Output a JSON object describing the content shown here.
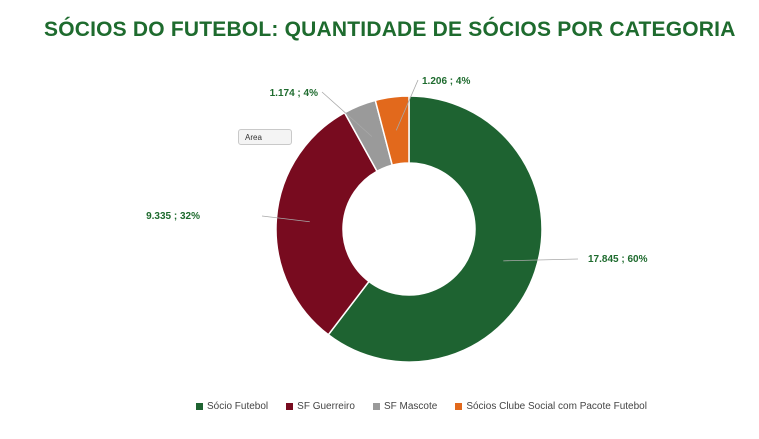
{
  "title": "SÓCIOS DO FUTEBOL: QUANTIDADE DE SÓCIOS POR CATEGORIA",
  "tooltip": "Area",
  "chart_data": {
    "type": "pie",
    "donut": true,
    "series": [
      {
        "name": "Sócio Futebol",
        "value": 17845,
        "percent": 60,
        "label": "17.845 ; 60%",
        "color": "#1e6331"
      },
      {
        "name": "SF Guerreiro",
        "value": 9335,
        "percent": 32,
        "label": "9.335 ; 32%",
        "color": "#780b1f"
      },
      {
        "name": "SF Mascote",
        "value": 1174,
        "percent": 4,
        "label": "1.174 ; 4%",
        "color": "#9a9a9a"
      },
      {
        "name": "Sócios Clube Social com Pacote Futebol",
        "value": 1206,
        "percent": 4,
        "label": "1.206 ; 4%",
        "color": "#e2691c"
      }
    ],
    "legend_position": "bottom",
    "label_color": "#1e6b2e"
  }
}
